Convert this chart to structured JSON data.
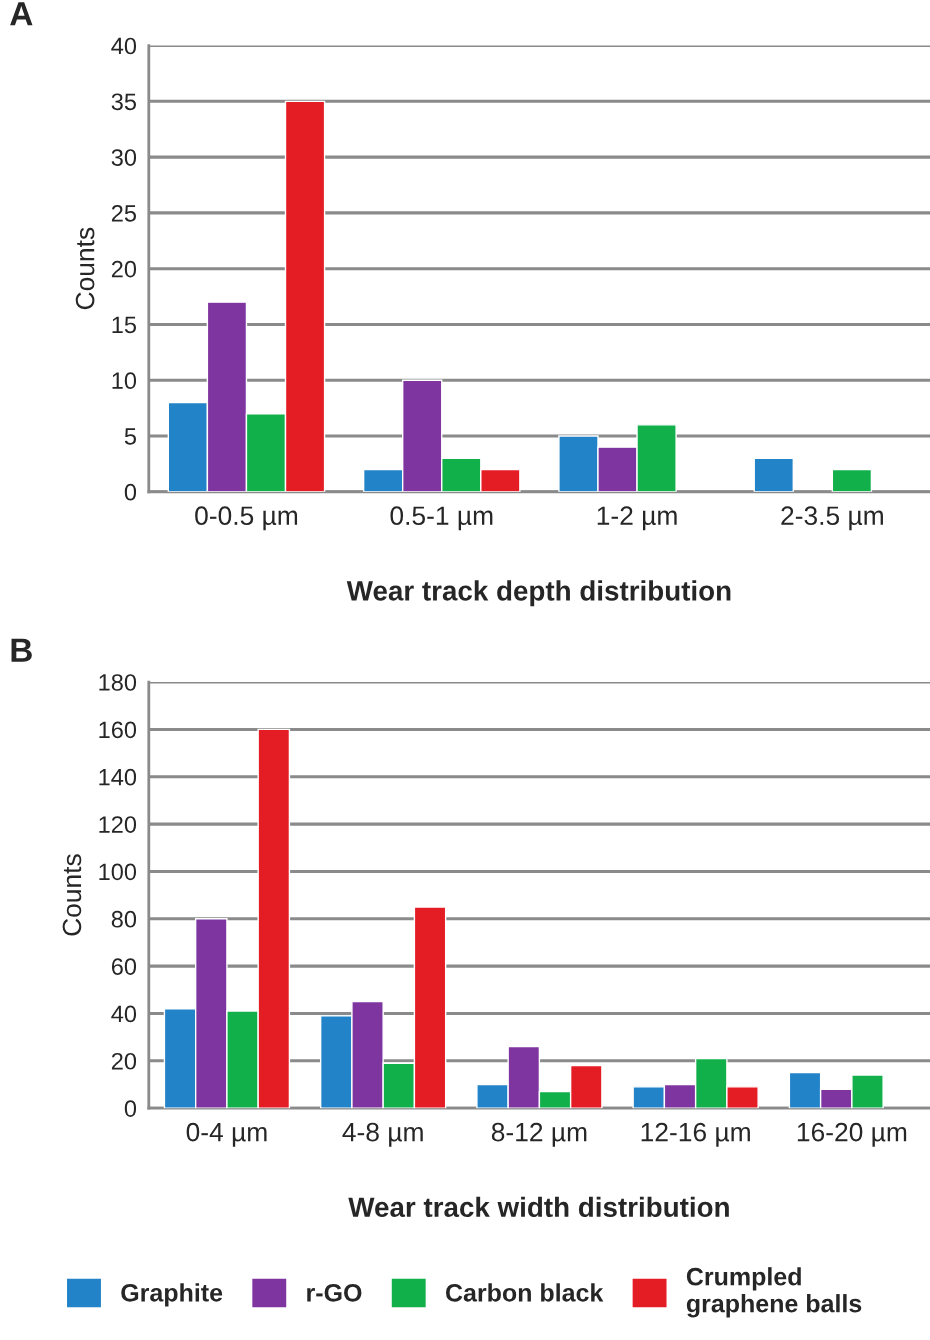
{
  "chart_data": [
    {
      "type": "bar",
      "xlabel": "Wear track depth distribution",
      "ylabel": "Counts",
      "annotations": [
        "A"
      ],
      "categories": [
        "0-0.5 µm",
        "0.5-1 µm",
        "1-2 µm",
        "2-3.5 µm"
      ],
      "ylim": [
        0,
        40
      ],
      "yticks": [
        0,
        5,
        10,
        15,
        20,
        25,
        30,
        35,
        40
      ],
      "grid": "y",
      "legend": "bottom",
      "series": [
        {
          "name": "Graphite",
          "color": "#2383c8",
          "values": [
            8,
            2,
            5,
            3
          ]
        },
        {
          "name": "r-GO",
          "color": "#7f35a0",
          "values": [
            17,
            10,
            4,
            null
          ]
        },
        {
          "name": "Carbon black",
          "color": "#12b04a",
          "values": [
            7,
            3,
            6,
            2
          ]
        },
        {
          "name": "Crumpled\ngraphene balls",
          "color": "#e41c24",
          "values": [
            35,
            2,
            null,
            null
          ]
        }
      ]
    },
    {
      "type": "bar",
      "xlabel": "Wear track width distribution",
      "ylabel": "Counts",
      "annotations": [
        "B"
      ],
      "categories": [
        "0-4 µm",
        "4-8 µm",
        "8-12 µm",
        "12-16 µm",
        "16-20 µm"
      ],
      "ylim": [
        0,
        180
      ],
      "yticks": [
        0,
        20,
        40,
        60,
        80,
        100,
        120,
        140,
        160,
        180
      ],
      "grid": "y",
      "legend": "bottom",
      "series": [
        {
          "name": "Graphite",
          "color": "#2383c8",
          "values": [
            42,
            39,
            10,
            9,
            15
          ]
        },
        {
          "name": "r-GO",
          "color": "#7f35a0",
          "values": [
            80,
            45,
            26,
            10,
            8
          ]
        },
        {
          "name": "Carbon black",
          "color": "#12b04a",
          "values": [
            41,
            19,
            7,
            21,
            14
          ]
        },
        {
          "name": "Crumpled\ngraphene balls",
          "color": "#e41c24",
          "values": [
            160,
            85,
            18,
            9,
            null
          ]
        }
      ]
    }
  ]
}
